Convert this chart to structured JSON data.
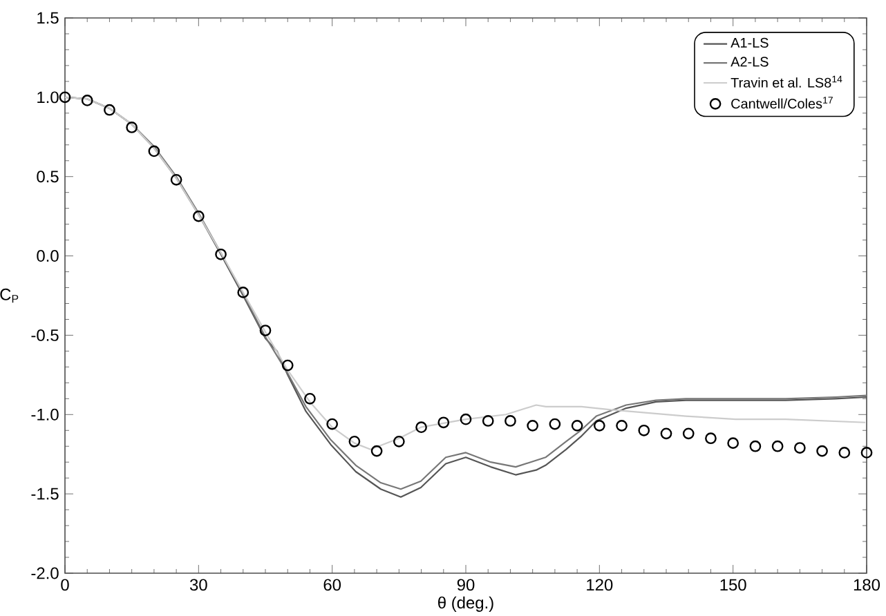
{
  "chart_data": {
    "type": "line",
    "xlabel": "θ (deg.)",
    "ylabel": "C$_{P}$",
    "xlim": [
      0,
      180
    ],
    "xticks": [
      0,
      30,
      60,
      90,
      120,
      150,
      180
    ],
    "ylim": [
      -2.0,
      1.5
    ],
    "yticks": [
      {
        "value": -2.0,
        "label": "-2.0"
      },
      {
        "value": -1.5,
        "label": "-1.5"
      },
      {
        "value": -1.0,
        "label": "-1.0"
      },
      {
        "value": -0.5,
        "label": "-0.5"
      },
      {
        "value": 0.0,
        "label": "0.0"
      },
      {
        "value": 0.5,
        "label": "0.5"
      },
      {
        "value": 1.0,
        "label": "1.0"
      },
      {
        "value": 1.5,
        "label": "1.5"
      }
    ],
    "grid": false,
    "legend": "top right",
    "series": [
      {
        "name": "A1-LS",
        "color": "#555555",
        "line_style": "solid",
        "marker": "none",
        "x": [
          0,
          5,
          10,
          15,
          20,
          25,
          30,
          35,
          40,
          45,
          47.6,
          50,
          54.1,
          59.7,
          65.3,
          70.9,
          75.4,
          79.9,
          85.5,
          90,
          95.6,
          101.2,
          105.8,
          107.9,
          112.5,
          115.8,
          119.3,
          126,
          132.7,
          139.4,
          150.6,
          161.8,
          173,
          180
        ],
        "values": [
          1.0,
          0.99,
          0.93,
          0.83,
          0.68,
          0.49,
          0.26,
          0.01,
          -0.25,
          -0.52,
          -0.6,
          -0.75,
          -0.98,
          -1.19,
          -1.36,
          -1.47,
          -1.52,
          -1.46,
          -1.31,
          -1.27,
          -1.33,
          -1.38,
          -1.35,
          -1.32,
          -1.22,
          -1.14,
          -1.04,
          -0.96,
          -0.92,
          -0.91,
          -0.91,
          -0.91,
          -0.9,
          -0.89
        ]
      },
      {
        "name": "A2-LS",
        "color": "#777777",
        "line_style": "solid",
        "marker": "none",
        "x": [
          0,
          5,
          10,
          15,
          20,
          25,
          30,
          35,
          40,
          45,
          50,
          54.1,
          59.7,
          65.3,
          70.9,
          75.4,
          79.9,
          85.5,
          90,
          95.6,
          101.2,
          107.9,
          112.5,
          115.8,
          119.3,
          126,
          132.7,
          139.4,
          150.6,
          161.8,
          173,
          180
        ],
        "values": [
          1.0,
          0.99,
          0.93,
          0.83,
          0.69,
          0.5,
          0.27,
          0.02,
          -0.24,
          -0.51,
          -0.74,
          -0.95,
          -1.16,
          -1.32,
          -1.43,
          -1.47,
          -1.42,
          -1.27,
          -1.24,
          -1.3,
          -1.33,
          -1.27,
          -1.17,
          -1.1,
          -1.01,
          -0.94,
          -0.91,
          -0.9,
          -0.9,
          -0.9,
          -0.89,
          -0.88
        ]
      },
      {
        "name": "Travin et al. LS8$^{14}$",
        "color": "#cccccc",
        "line_style": "solid",
        "marker": "none",
        "x": [
          0,
          5,
          10,
          15,
          20,
          25,
          30,
          35,
          40,
          45,
          50,
          55,
          60,
          65,
          68.6,
          75,
          79.9,
          90,
          99,
          105.8,
          108,
          116,
          122.6,
          139.4,
          150.6,
          161.8,
          179.7
        ],
        "values": [
          1.0,
          0.99,
          0.93,
          0.83,
          0.68,
          0.49,
          0.26,
          0.02,
          -0.23,
          -0.48,
          -0.72,
          -0.92,
          -1.08,
          -1.18,
          -1.22,
          -1.15,
          -1.08,
          -1.03,
          -1.0,
          -0.94,
          -0.95,
          -0.95,
          -0.97,
          -1.01,
          -1.03,
          -1.03,
          -1.05
        ]
      },
      {
        "name": "Cantwell/Coles$^{17}$",
        "type": "scatter",
        "color": "#000000",
        "marker": "circle",
        "x": [
          0,
          5,
          10,
          15,
          20,
          25,
          30,
          35,
          40,
          45,
          50,
          55,
          60,
          65,
          70,
          75,
          80,
          85,
          90,
          95,
          100,
          105,
          110,
          115,
          120,
          125,
          130,
          135,
          140,
          145,
          150,
          155,
          160,
          165,
          170,
          175,
          180
        ],
        "values": [
          1.0,
          0.98,
          0.92,
          0.81,
          0.66,
          0.48,
          0.25,
          0.01,
          -0.23,
          -0.47,
          -0.69,
          -0.9,
          -1.06,
          -1.17,
          -1.23,
          -1.17,
          -1.08,
          -1.05,
          -1.03,
          -1.04,
          -1.04,
          -1.07,
          -1.06,
          -1.07,
          -1.07,
          -1.07,
          -1.1,
          -1.12,
          -1.12,
          -1.15,
          -1.18,
          -1.2,
          -1.2,
          -1.21,
          -1.23,
          -1.24,
          -1.24
        ]
      }
    ]
  }
}
